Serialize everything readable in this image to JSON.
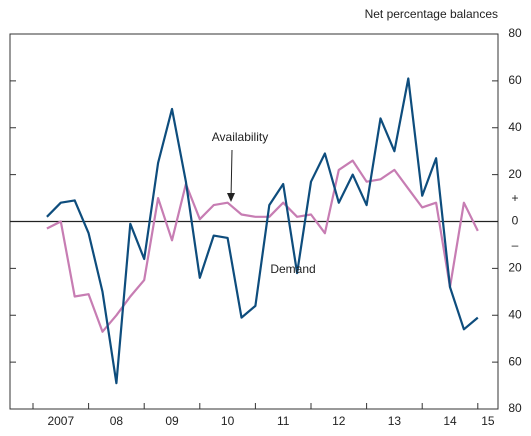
{
  "chart_data": {
    "type": "line",
    "y_axis_label": "Net percentage balances",
    "categories": [
      null,
      null,
      null,
      null,
      null,
      null,
      null,
      null,
      null,
      null,
      null,
      null,
      null,
      null,
      null,
      null,
      null,
      null,
      null,
      null,
      null,
      null,
      null,
      null,
      null,
      null,
      null,
      null,
      null,
      null,
      null,
      null
    ],
    "year_labels": [
      "2007",
      "08",
      "09",
      "10",
      "11",
      "12",
      "13",
      "14",
      "15"
    ],
    "series": [
      {
        "name": "Demand",
        "color": "#0e4d7d",
        "values": [
          2,
          8,
          9,
          -5,
          -30,
          -69,
          -1,
          -16,
          25,
          48,
          17,
          -24,
          -6,
          -7,
          -41,
          -36,
          7,
          16,
          -22,
          17,
          29,
          8,
          20,
          7,
          44,
          30,
          61,
          11,
          27,
          -28,
          -46,
          -41
        ]
      },
      {
        "name": "Availability",
        "color": "#c77db3",
        "values": [
          -3,
          0,
          -32,
          -31,
          -47,
          -40,
          -32,
          -25,
          10,
          -8,
          16,
          1,
          7,
          8,
          3,
          2,
          2,
          8,
          2,
          3,
          -5,
          22,
          26,
          17,
          18,
          22,
          14,
          6,
          8,
          -28,
          8,
          -4
        ]
      }
    ],
    "ylim": [
      -80,
      80
    ],
    "yticks": [
      80,
      60,
      40,
      20,
      0,
      {
        "value": -20,
        "label": "20"
      },
      {
        "value": -40,
        "label": "40"
      },
      {
        "value": -60,
        "label": "60"
      },
      {
        "value": -80,
        "label": "80"
      }
    ],
    "sign_labels": [
      "+",
      "–"
    ]
  }
}
